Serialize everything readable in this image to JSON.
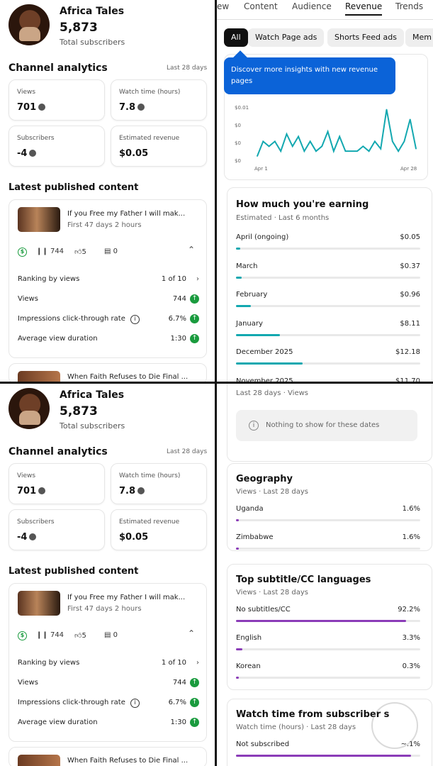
{
  "channel": {
    "name": "Africa Tales",
    "subscribers": "5,873",
    "subscribers_label": "Total subscribers",
    "analytics_title": "Channel analytics",
    "range": "Last 28 days",
    "metrics": {
      "views": {
        "label": "Views",
        "value": "701"
      },
      "watch": {
        "label": "Watch time (hours)",
        "value": "7.8"
      },
      "subs": {
        "label": "Subscribers",
        "value": "-4"
      },
      "revenue": {
        "label": "Estimated revenue",
        "value": "$0.05"
      }
    },
    "latest_title": "Latest published content",
    "video": {
      "title": "If you Free my Father I will mak...",
      "age": "First 47 days 2 hours",
      "views_count": "744",
      "likes": "5",
      "comments": "0",
      "ranking_label": "Ranking by views",
      "ranking_value": "1 of 10",
      "views_label": "Views",
      "views_value": "744",
      "ctr_label": "Impressions click-through rate",
      "ctr_value": "6.7%",
      "avd_label": "Average view duration",
      "avd_value": "1:30"
    },
    "next_video_title": "When Faith Refuses to Die Final ..."
  },
  "revenue": {
    "tabs": [
      "ew",
      "Content",
      "Audience",
      "Revenue",
      "Trends"
    ],
    "chips": [
      "All",
      "Watch Page ads",
      "Shorts Feed ads",
      "Mem"
    ],
    "tooltip": "Discover more insights with new revenue pages",
    "chart_data": {
      "type": "line",
      "y_tick_labels": [
        "$0.01",
        "$0",
        "$0",
        "$0"
      ],
      "x_tick_labels": [
        "Apr 1",
        "Apr 28"
      ],
      "color": "#13a8b0",
      "values": [
        0.001,
        0.004,
        0.003,
        0.004,
        0.002,
        0.0055,
        0.003,
        0.005,
        0.002,
        0.004,
        0.002,
        0.003,
        0.006,
        0.002,
        0.005,
        0.002,
        0.002,
        0.002,
        0.003,
        0.002,
        0.004,
        0.0025,
        0.0105,
        0.004,
        0.002,
        0.004,
        0.0085,
        0.0025
      ]
    },
    "earning": {
      "title": "How much you're earning",
      "subtitle": "Estimated · Last 6 months",
      "months": [
        {
          "label": "April (ongoing)",
          "value": "$0.05",
          "fraction": 0.004
        },
        {
          "label": "March",
          "value": "$0.37",
          "fraction": 0.03
        },
        {
          "label": "February",
          "value": "$0.96",
          "fraction": 0.079
        },
        {
          "label": "January",
          "value": "$8.11",
          "fraction": 0.24
        },
        {
          "label": "December 2025",
          "value": "$12.18",
          "fraction": 0.36
        },
        {
          "label": "November 2025",
          "value": "$11.70",
          "fraction": 0.35
        }
      ]
    }
  },
  "audience": {
    "views_range": "Last 28 days · Views",
    "empty_text": "Nothing to show for these dates",
    "geography": {
      "title": "Geography",
      "subtitle": "Views · Last 28 days",
      "rows": [
        {
          "label": "Uganda",
          "value": "1.6%",
          "fraction": 0.016
        },
        {
          "label": "Zimbabwe",
          "value": "1.6%",
          "fraction": 0.016
        }
      ]
    },
    "subtitles": {
      "title": "Top subtitle/CC languages",
      "subtitle": "Views · Last 28 days",
      "rows": [
        {
          "label": "No subtitles/CC",
          "value": "92.2%",
          "fraction": 0.922
        },
        {
          "label": "English",
          "value": "3.3%",
          "fraction": 0.033
        },
        {
          "label": "Korean",
          "value": "0.3%",
          "fraction": 0.003
        }
      ]
    },
    "watch_subs": {
      "title": "Watch time from subscriber s",
      "subtitle": "Watch time (hours) · Last 28 days",
      "rows": [
        {
          "label": "Not subscribed",
          "value": "~.1%",
          "fraction": 0.95
        }
      ]
    }
  }
}
